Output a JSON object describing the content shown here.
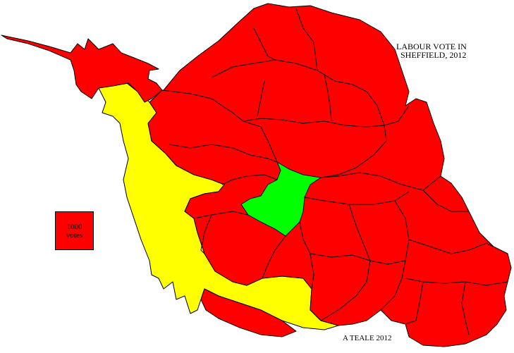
{
  "title": {
    "line1": "LABOUR VOTE IN",
    "line2": "SHEFFIELD, 2012"
  },
  "legend": {
    "value_line": "1000",
    "unit_line": "votes",
    "represents_votes": 1000,
    "color": "#ff0000"
  },
  "credit": "A TEALE 2012",
  "colors": {
    "labour_red": "#ff0000",
    "yellow": "#ffff00",
    "green": "#00ff00",
    "outline": "#000000",
    "background": "#ffffff"
  }
}
